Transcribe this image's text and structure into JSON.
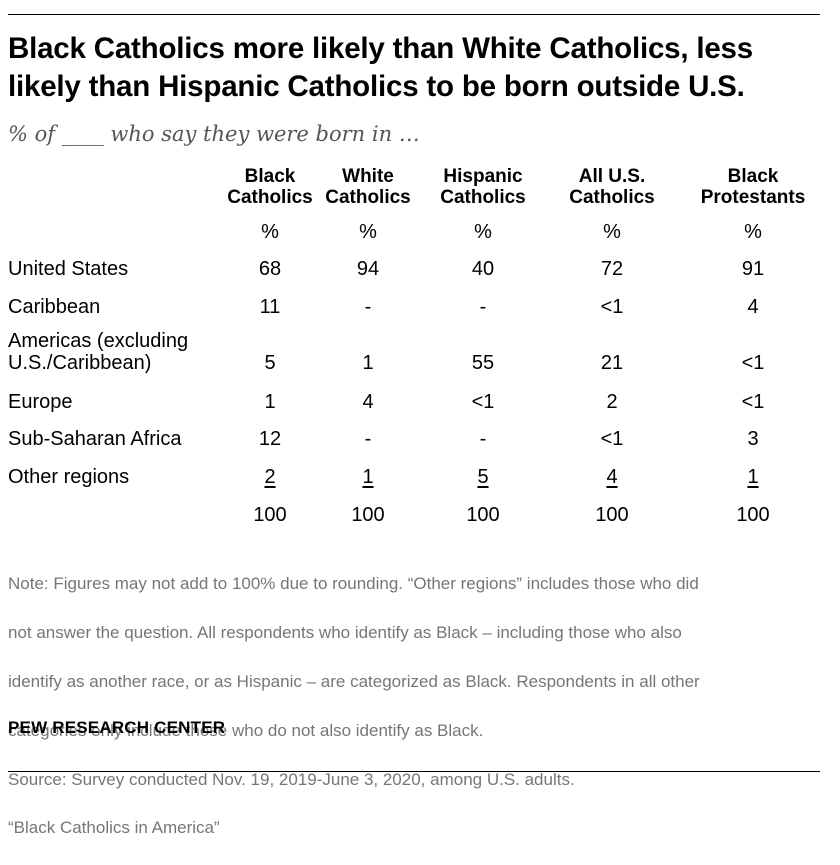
{
  "title": "Black Catholics more likely than White Catholics, less likely than Hispanic Catholics to be born outside U.S.",
  "title_lines": [
    "Black Catholics more likely than White Catholics, less",
    "likely than Hispanic Catholics to be born outside U.S."
  ],
  "subtitle": "% of ____ who say they were born in …",
  "note_lines": [
    "Note: Figures may not add to 100% due to rounding. “Other regions” includes those who did",
    "not answer the question. All respondents who identify as Black – including those who also",
    "identify as another race, or as Hispanic – are categorized as Black. Respondents in all other",
    "categories only include those who do not also identify as Black.",
    "Source: Survey conducted Nov. 19, 2019-June 3, 2020, among U.S. adults.",
    "“Black Catholics in America”"
  ],
  "brand": "PEW RESEARCH CENTER",
  "chart_data": {
    "type": "table",
    "columns": [
      "Black\nCatholics",
      "White\nCatholics",
      "Hispanic\nCatholics",
      "All U.S.\nCatholics",
      "Black\nProtestants"
    ],
    "unit_row": [
      "%",
      "%",
      "%",
      "%",
      "%"
    ],
    "rows": [
      {
        "label": "United States",
        "values": [
          "68",
          "94",
          "40",
          "72",
          "91"
        ]
      },
      {
        "label": "Caribbean",
        "values": [
          "11",
          "-",
          "-",
          "<1",
          "4"
        ]
      },
      {
        "label": "Americas (excluding\nU.S./Caribbean)",
        "values": [
          "5",
          "1",
          "55",
          "21",
          "<1"
        ]
      },
      {
        "label": "Europe",
        "values": [
          "1",
          "4",
          "<1",
          "2",
          "<1"
        ]
      },
      {
        "label": "Sub-Saharan Africa",
        "values": [
          "12",
          "-",
          "-",
          "<1",
          "3"
        ]
      },
      {
        "label": "Other regions",
        "values": [
          "2",
          "1",
          "5",
          "4",
          "1"
        ]
      }
    ],
    "totals": [
      "100",
      "100",
      "100",
      "100",
      "100"
    ]
  }
}
